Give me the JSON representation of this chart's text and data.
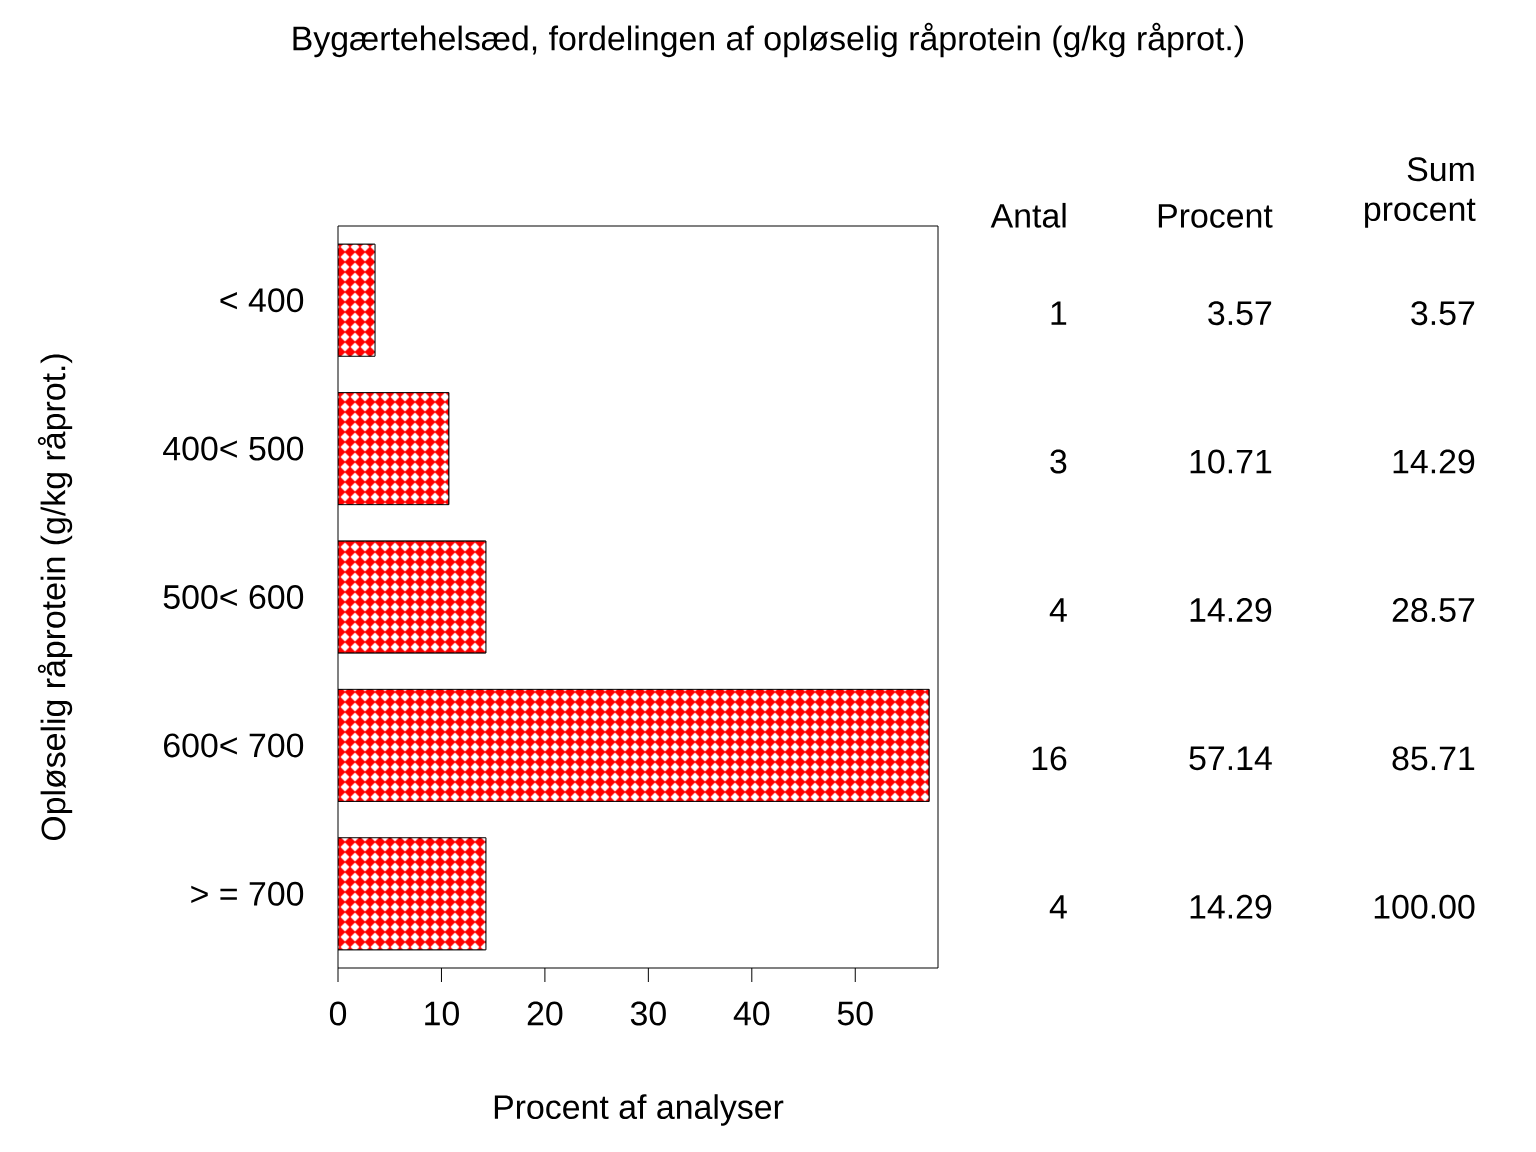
{
  "chart_data": {
    "type": "bar",
    "orientation": "horizontal",
    "title": "Bygærtehelsæd, fordelingen af opløselig råprotein (g/kg råprot.)",
    "xlabel": "Procent af analyser",
    "ylabel": "Opløselig råprotein (g/kg råprot.)",
    "categories": [
      "< 400",
      "400< 500",
      "500< 600",
      "600< 700",
      "> = 700"
    ],
    "values": [
      3.57,
      10.71,
      14.29,
      57.14,
      14.29
    ],
    "color": "#ff0000",
    "xlim": [
      0,
      58
    ],
    "xticks": [
      0,
      10,
      20,
      30,
      40,
      50
    ],
    "annotations": [
      "Antal",
      "Procent",
      "Sum procent",
      "1",
      "3.57",
      "3.57",
      "3",
      "10.71",
      "14.29",
      "4",
      "14.29",
      "28.57",
      "16",
      "57.14",
      "85.71",
      "4",
      "14.29",
      "100.00"
    ]
  }
}
